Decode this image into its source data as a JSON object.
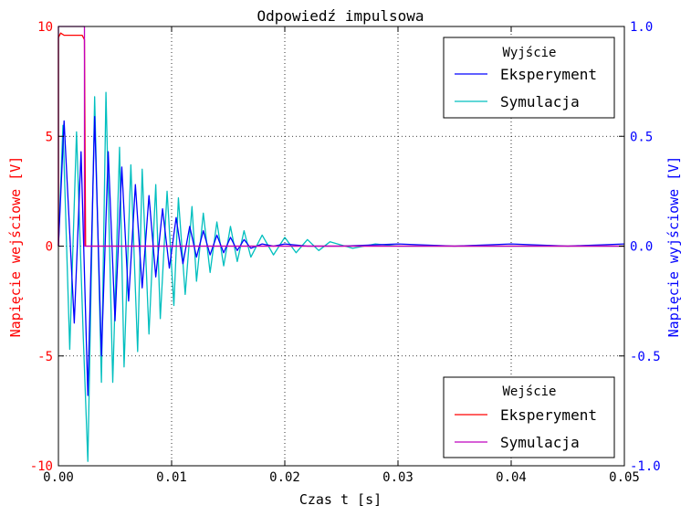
{
  "chart_data": {
    "type": "line",
    "title": "Odpowiedź impulsowa",
    "xlabel": "Czas t [s]",
    "ylabel_left": "Napięcie wejściowe [V]",
    "ylabel_right": "Napięcie wyjściowe [V]",
    "xlim": [
      0.0,
      0.05
    ],
    "ylim_left": [
      -10,
      10
    ],
    "ylim_right": [
      -1.0,
      1.0
    ],
    "grid": true,
    "x_ticks": [
      "0.00",
      "0.01",
      "0.02",
      "0.03",
      "0.04",
      "0.05"
    ],
    "y_left_ticks": [
      "10",
      "5",
      "0",
      "-5",
      "-10"
    ],
    "y_right_ticks": [
      "1.0",
      "0.5",
      "0.0",
      "-0.5",
      "-1.0"
    ],
    "colors": {
      "left_axis": "#ff0000",
      "right_axis": "#0000ff",
      "output_experiment": "#0000ff",
      "output_simulation": "#00bfbf",
      "input_experiment": "#ff0000",
      "input_simulation": "#bf00bf"
    },
    "legends": [
      {
        "title": "Wyjście",
        "location": "top-right",
        "entries": [
          {
            "label": "Eksperyment",
            "color": "#0000ff"
          },
          {
            "label": "Symulacja",
            "color": "#00bfbf"
          }
        ]
      },
      {
        "title": "Wejście",
        "location": "bottom-right",
        "entries": [
          {
            "label": "Eksperyment",
            "color": "#ff0000"
          },
          {
            "label": "Symulacja",
            "color": "#bf00bf"
          }
        ]
      }
    ],
    "series": [
      {
        "name": "Eksperyment",
        "axis": "left",
        "group": "Wejście",
        "color": "#ff0000",
        "x": [
          0.0,
          0.0,
          0.0002,
          0.0005,
          0.0021,
          0.0023,
          0.0024,
          0.05
        ],
        "y": [
          0.0,
          9.5,
          9.7,
          9.6,
          9.6,
          9.4,
          0.0,
          0.0
        ]
      },
      {
        "name": "Symulacja",
        "axis": "left",
        "group": "Wejście",
        "color": "#bf00bf",
        "x": [
          0.0,
          0.0,
          0.0023,
          0.0023,
          0.05
        ],
        "y": [
          0.0,
          10.0,
          10.0,
          0.0,
          0.0
        ]
      },
      {
        "name": "Eksperyment",
        "axis": "right",
        "group": "Wyjście",
        "color": "#0000ff",
        "x": [
          0.0,
          0.0005,
          0.0014,
          0.002,
          0.0026,
          0.0032,
          0.0038,
          0.0044,
          0.005,
          0.0056,
          0.0062,
          0.0068,
          0.0074,
          0.008,
          0.0086,
          0.0092,
          0.0098,
          0.0104,
          0.011,
          0.0116,
          0.0122,
          0.0128,
          0.0134,
          0.014,
          0.0146,
          0.0152,
          0.0158,
          0.0164,
          0.017,
          0.018,
          0.019,
          0.02,
          0.022,
          0.025,
          0.03,
          0.035,
          0.04,
          0.045,
          0.05
        ],
        "y": [
          0.0,
          0.57,
          -0.35,
          0.43,
          -0.68,
          0.59,
          -0.5,
          0.43,
          -0.34,
          0.36,
          -0.25,
          0.28,
          -0.19,
          0.23,
          -0.14,
          0.17,
          -0.1,
          0.13,
          -0.08,
          0.09,
          -0.05,
          0.07,
          -0.04,
          0.05,
          -0.03,
          0.04,
          -0.02,
          0.03,
          -0.01,
          0.01,
          0.0,
          0.01,
          0.0,
          0.0,
          0.01,
          0.0,
          0.01,
          0.0,
          0.01
        ]
      },
      {
        "name": "Symulacja",
        "axis": "right",
        "group": "Wyjście",
        "color": "#00bfbf",
        "x": [
          0.0,
          0.0004,
          0.001,
          0.0016,
          0.0022,
          0.0026,
          0.0032,
          0.0038,
          0.0042,
          0.0048,
          0.0054,
          0.0058,
          0.0064,
          0.007,
          0.0074,
          0.008,
          0.0086,
          0.009,
          0.0096,
          0.0102,
          0.0106,
          0.0112,
          0.0118,
          0.0122,
          0.0128,
          0.0134,
          0.014,
          0.0146,
          0.0152,
          0.0158,
          0.0164,
          0.017,
          0.018,
          0.019,
          0.02,
          0.021,
          0.022,
          0.023,
          0.024,
          0.026,
          0.028,
          0.03,
          0.035,
          0.04,
          0.045,
          0.05
        ],
        "y": [
          0.0,
          0.55,
          -0.47,
          0.52,
          -0.42,
          -0.98,
          0.68,
          -0.62,
          0.7,
          -0.62,
          0.45,
          -0.55,
          0.37,
          -0.48,
          0.35,
          -0.4,
          0.28,
          -0.33,
          0.25,
          -0.27,
          0.22,
          -0.22,
          0.18,
          -0.16,
          0.15,
          -0.12,
          0.11,
          -0.09,
          0.09,
          -0.07,
          0.07,
          -0.05,
          0.05,
          -0.04,
          0.04,
          -0.03,
          0.03,
          -0.02,
          0.02,
          -0.01,
          0.01,
          0.0,
          0.0,
          0.0,
          0.0,
          0.0
        ]
      }
    ]
  }
}
